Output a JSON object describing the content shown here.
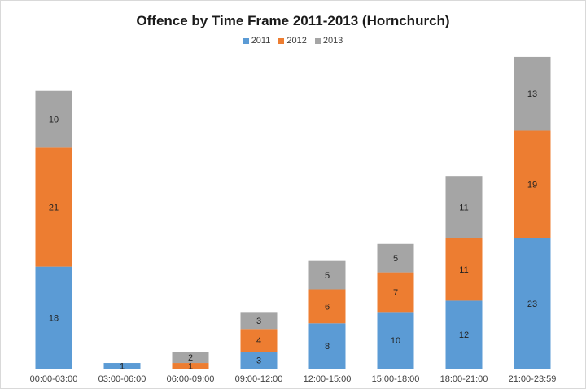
{
  "chart_data": {
    "type": "bar",
    "stacked": true,
    "title": "Offence by Time Frame 2011-2013 (Hornchurch)",
    "xlabel": "",
    "ylabel": "",
    "categories": [
      "00:00-03:00",
      "03:00-06:00",
      "06:00-09:00",
      "09:00-12:00",
      "12:00-15:00",
      "15:00-18:00",
      "18:00-21:00",
      "21:00-23:59"
    ],
    "series": [
      {
        "name": "2011",
        "color": "#5b9bd5",
        "values": [
          18,
          1,
          0,
          3,
          8,
          10,
          12,
          23
        ],
        "labels": [
          "18",
          "1",
          "",
          "3",
          "8",
          "10",
          "12",
          "23"
        ]
      },
      {
        "name": "2012",
        "color": "#ed7d31",
        "values": [
          21,
          0,
          1,
          4,
          6,
          7,
          11,
          19
        ],
        "labels": [
          "21",
          "",
          "1",
          "4",
          "6",
          "7",
          "11",
          "19"
        ]
      },
      {
        "name": "2013",
        "color": "#a5a5a5",
        "values": [
          10,
          0,
          2,
          3,
          5,
          5,
          11,
          13
        ],
        "labels": [
          "10",
          "",
          "2",
          "3",
          "5",
          "5",
          "11",
          "13"
        ]
      }
    ],
    "ylim": [
      0,
      57
    ],
    "legend_position": "top",
    "grid": false
  }
}
